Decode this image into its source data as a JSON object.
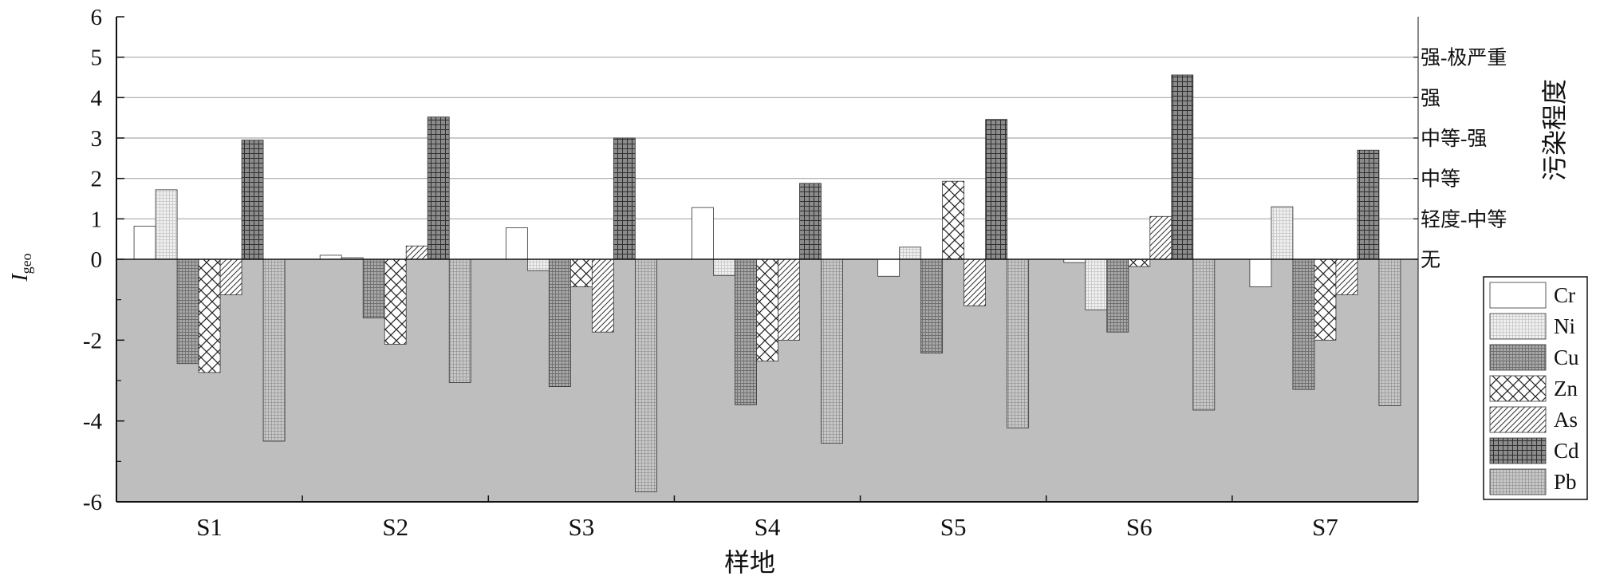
{
  "chart_data": {
    "type": "bar",
    "xlabel": "样地",
    "ylabel_main": "I",
    "ylabel_sub": "geo",
    "right_axis_label": "污染程度",
    "categories": [
      "S1",
      "S2",
      "S3",
      "S4",
      "S5",
      "S6",
      "S7"
    ],
    "ylim": [
      -6,
      6
    ],
    "ytick_labels": [
      "6",
      "5",
      "4",
      "3",
      "2",
      "1",
      "0",
      "-2",
      "-4",
      "-6"
    ],
    "ytick_values": [
      6,
      5,
      4,
      3,
      2,
      1,
      0,
      -2,
      -4,
      -6
    ],
    "pollution_levels": [
      {
        "y": 0,
        "label": "无"
      },
      {
        "y": 1,
        "label": "轻度-中等"
      },
      {
        "y": 2,
        "label": "中等"
      },
      {
        "y": 3,
        "label": "中等-强"
      },
      {
        "y": 4,
        "label": "强"
      },
      {
        "y": 5,
        "label": "强-极严重"
      }
    ],
    "grid": "horizontal lines at pollution levels 1–5",
    "negative_region_shaded": true,
    "legend_position": "right",
    "series": [
      {
        "name": "Cr",
        "pattern": "blank",
        "values": [
          0.82,
          0.1,
          0.78,
          1.28,
          -0.42,
          -0.08,
          -0.68
        ]
      },
      {
        "name": "Ni",
        "pattern": "fine-dots",
        "values": [
          1.72,
          0.04,
          -0.28,
          -0.4,
          0.3,
          -1.25,
          1.3
        ]
      },
      {
        "name": "Cu",
        "pattern": "fine-grid",
        "values": [
          -2.58,
          -1.45,
          -3.15,
          -3.6,
          -2.32,
          -1.8,
          -3.22
        ]
      },
      {
        "name": "Zn",
        "pattern": "cross-hatch",
        "values": [
          -2.8,
          -2.1,
          -0.68,
          -2.52,
          1.93,
          -0.18,
          -2.0
        ]
      },
      {
        "name": "As",
        "pattern": "diagonal",
        "values": [
          -0.88,
          0.33,
          -1.8,
          -2.0,
          -1.15,
          1.06,
          -0.88
        ]
      },
      {
        "name": "Cd",
        "pattern": "dense-grid",
        "values": [
          2.95,
          3.52,
          3.0,
          1.88,
          3.46,
          4.56,
          2.7
        ]
      },
      {
        "name": "Pb",
        "pattern": "light-grid",
        "values": [
          -4.5,
          -3.05,
          -5.75,
          -4.55,
          -4.17,
          -3.73,
          -3.62
        ]
      }
    ],
    "colors": {
      "negative_region": "#bebebe",
      "gridline": "#aaaaaa",
      "axis": "#111111"
    }
  }
}
